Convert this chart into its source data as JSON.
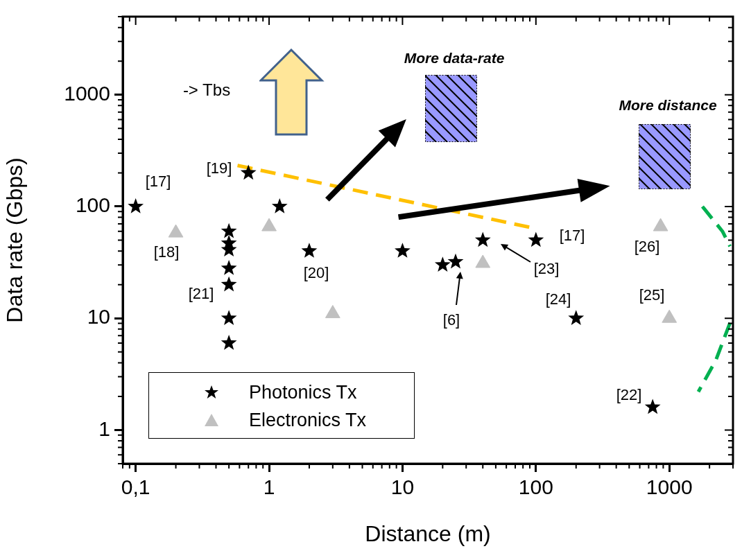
{
  "chart_data": {
    "type": "scatter",
    "xlabel": "Distance (m)",
    "ylabel": "Data rate (Gbps)",
    "log": "xy",
    "grid": false,
    "legend": "bottom left",
    "xlim": [
      0.08,
      3000
    ],
    "ylim": [
      0.5,
      5000
    ],
    "xticks": [
      {
        "value": 0.1,
        "label": "0,1"
      },
      1,
      10,
      100,
      1000
    ],
    "yticks": [
      1,
      10,
      100,
      1000
    ],
    "series": [
      {
        "name": "Photonics Tx",
        "color": "#000000",
        "marker": "star",
        "x": [
          0.1,
          0.7,
          1.2,
          0.5,
          0.5,
          0.5,
          0.5,
          0.5,
          0.5,
          0.5,
          2,
          10,
          20,
          25,
          40,
          100,
          200,
          750
        ],
        "values": [
          100,
          200,
          100,
          60,
          47,
          41,
          28,
          20,
          10,
          6,
          40,
          40,
          30,
          32,
          50,
          50,
          10,
          1.6
        ]
      },
      {
        "name": "Electronics Tx",
        "color": "#c0c0c0",
        "marker": "triangle",
        "x": [
          0.2,
          1,
          3,
          40,
          860,
          1000
        ],
        "values": [
          58,
          66,
          11,
          31,
          66,
          10
        ]
      },
      {
        "type": "line",
        "color": "#ffc000",
        "line_style": "dashed",
        "marker": "none",
        "x": [
          0.58,
          91
        ],
        "values": [
          233,
          65
        ]
      },
      {
        "type": "line",
        "color": "#00b050",
        "line_style": "dashed",
        "marker": "none",
        "x": [
          1770,
          2500,
          2850
        ],
        "values": [
          100,
          60,
          44
        ]
      },
      {
        "type": "line",
        "color": "#00b050",
        "line_style": "dashed",
        "marker": "none",
        "x": [
          2850,
          2230,
          1650
        ],
        "values": [
          9.1,
          4.2,
          2.2
        ]
      }
    ],
    "annotations": [
      "-> Tbs",
      "More data-rate",
      "More distance",
      "[17]",
      "[19]",
      "[18]",
      "[21]",
      "[20]",
      "[6]",
      "[23]",
      "[17]",
      "[24]",
      "[26]",
      "[25]",
      "[22]"
    ]
  }
}
